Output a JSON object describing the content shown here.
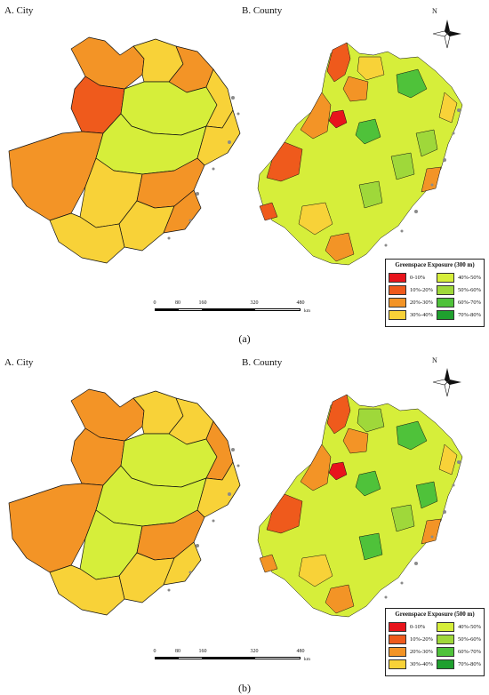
{
  "panels": [
    {
      "caption": "(a)",
      "city_label": "A. City",
      "county_label": "B. County",
      "legend_title": "Greenspace Exposure (300 m)"
    },
    {
      "caption": "(b)",
      "city_label": "A. City",
      "county_label": "B. County",
      "legend_title": "Greenspace Exposure (500 m)"
    }
  ],
  "legend_items": [
    {
      "label": "0-10%",
      "color": "#e8141c"
    },
    {
      "label": "40%-50%",
      "color": "#d6ee3a"
    },
    {
      "label": "10%-20%",
      "color": "#ef5a1c"
    },
    {
      "label": "50%-60%",
      "color": "#9fd83a"
    },
    {
      "label": "20%-30%",
      "color": "#f39426"
    },
    {
      "label": "60%-70%",
      "color": "#4fc23a"
    },
    {
      "label": "30%-40%",
      "color": "#f8d238"
    },
    {
      "label": "70%-80%",
      "color": "#1fa02e"
    }
  ],
  "north_label": "N",
  "scale": {
    "ticks": [
      "0",
      "80",
      "160",
      "320",
      "480"
    ],
    "unit": "km"
  },
  "colors": {
    "border": "#111111",
    "island": "#8a8a8a"
  }
}
